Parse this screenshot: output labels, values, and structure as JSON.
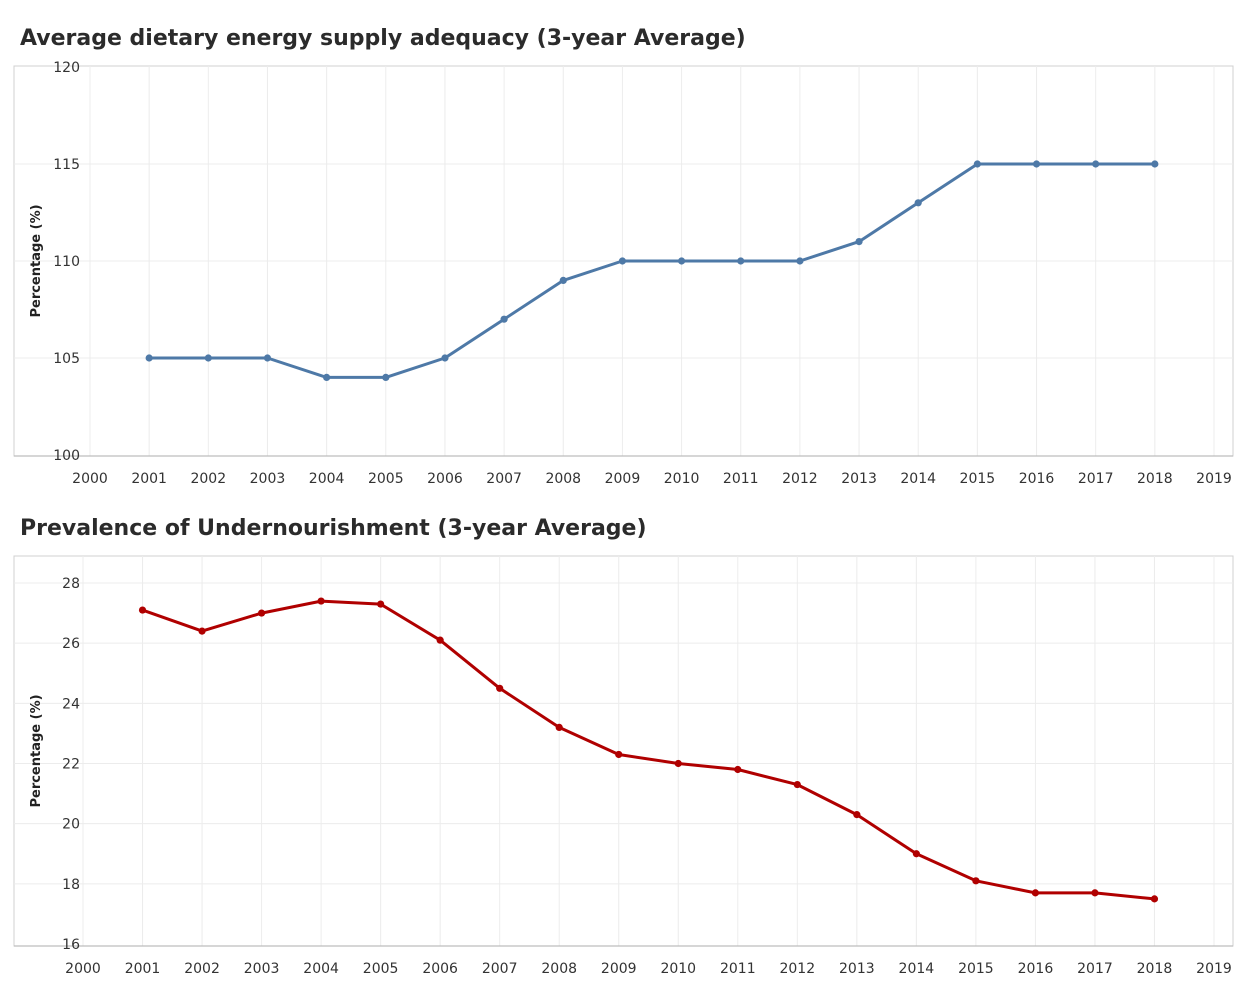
{
  "chart_data": [
    {
      "type": "line",
      "title": "Average dietary energy supply adequacy (3-year Average)",
      "ylabel": "Percentage (%)",
      "xlabel": "",
      "x": [
        2001,
        2002,
        2003,
        2004,
        2005,
        2006,
        2007,
        2008,
        2009,
        2010,
        2011,
        2012,
        2013,
        2014,
        2015,
        2016,
        2017,
        2018
      ],
      "series": [
        {
          "values": [
            105,
            105,
            105,
            104,
            104,
            105,
            107,
            109,
            110,
            110,
            110,
            110,
            111,
            113,
            115,
            115,
            115,
            115
          ]
        }
      ],
      "xlim": [
        2000,
        2019
      ],
      "ylim": [
        100,
        120
      ],
      "x_ticks": [
        "2000",
        "2001",
        "2002",
        "2003",
        "2004",
        "2005",
        "2006",
        "2007",
        "2008",
        "2009",
        "2010",
        "2011",
        "2012",
        "2013",
        "2014",
        "2015",
        "2016",
        "2017",
        "2018",
        "2019"
      ],
      "y_ticks": [
        "100",
        "105",
        "110",
        "115",
        "120"
      ],
      "grid": true,
      "color": "#4e79a7"
    },
    {
      "type": "line",
      "title": "Prevalence of Undernourishment (3-year Average)",
      "ylabel": "Percentage (%)",
      "xlabel": "",
      "x": [
        2001,
        2002,
        2003,
        2004,
        2005,
        2006,
        2007,
        2008,
        2009,
        2010,
        2011,
        2012,
        2013,
        2014,
        2015,
        2016,
        2017,
        2018
      ],
      "series": [
        {
          "values": [
            27.1,
            26.4,
            27.0,
            27.4,
            27.3,
            26.1,
            24.5,
            23.2,
            22.3,
            22.0,
            21.8,
            21.3,
            20.3,
            19.0,
            18.1,
            17.7,
            17.7,
            17.5
          ]
        }
      ],
      "xlim": [
        2000,
        2019
      ],
      "ylim": [
        16,
        28
      ],
      "x_ticks": [
        "2000",
        "2001",
        "2002",
        "2003",
        "2004",
        "2005",
        "2006",
        "2007",
        "2008",
        "2009",
        "2010",
        "2011",
        "2012",
        "2013",
        "2014",
        "2015",
        "2016",
        "2017",
        "2018",
        "2019"
      ],
      "y_ticks": [
        "16",
        "18",
        "20",
        "22",
        "24",
        "26",
        "28"
      ],
      "grid": true,
      "color": "#b00000"
    }
  ]
}
